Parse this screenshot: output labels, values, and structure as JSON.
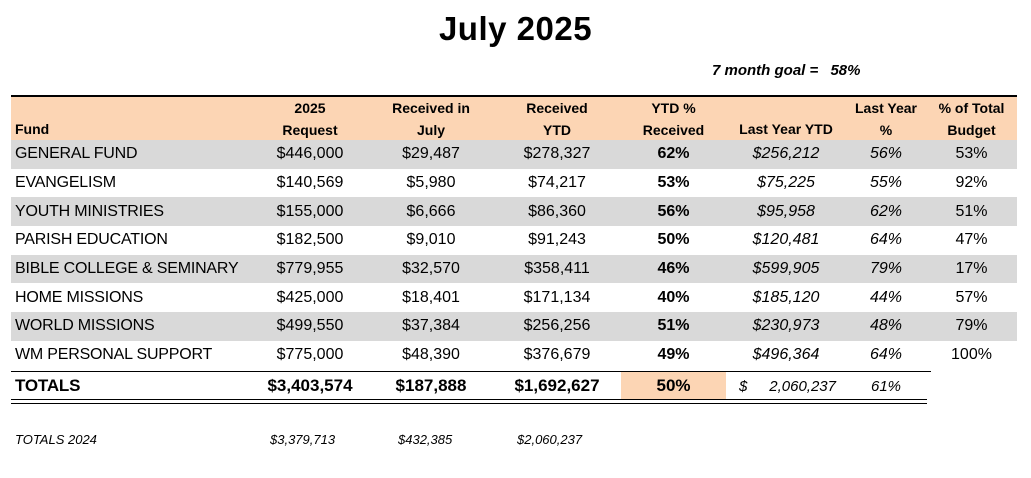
{
  "title": "July 2025",
  "goal": {
    "label": "7 month goal =",
    "value": "58%"
  },
  "headers": {
    "fund": "Fund",
    "request": [
      "2025",
      "Request"
    ],
    "received_month": [
      "Received in",
      "July"
    ],
    "received_ytd": [
      "Received",
      "YTD"
    ],
    "ytd_pct": [
      "YTD %",
      "Received"
    ],
    "last_year_ytd": "Last Year YTD",
    "last_year_pct": [
      "Last Year",
      "%"
    ],
    "pct_total_budget": [
      "% of Total",
      "Budget"
    ]
  },
  "rows": [
    {
      "fund": "GENERAL FUND",
      "request": "$446,000",
      "received_month": "$29,487",
      "received_ytd": "$278,327",
      "ytd_pct": "62%",
      "last_year_ytd": "$256,212",
      "last_year_pct": "56%",
      "pct_total_budget": "53%"
    },
    {
      "fund": "EVANGELISM",
      "request": "$140,569",
      "received_month": "$5,980",
      "received_ytd": "$74,217",
      "ytd_pct": "53%",
      "last_year_ytd": "$75,225",
      "last_year_pct": "55%",
      "pct_total_budget": "92%"
    },
    {
      "fund": "YOUTH MINISTRIES",
      "request": "$155,000",
      "received_month": "$6,666",
      "received_ytd": "$86,360",
      "ytd_pct": "56%",
      "last_year_ytd": "$95,958",
      "last_year_pct": "62%",
      "pct_total_budget": "51%"
    },
    {
      "fund": "PARISH EDUCATION",
      "request": "$182,500",
      "received_month": "$9,010",
      "received_ytd": "$91,243",
      "ytd_pct": "50%",
      "last_year_ytd": "$120,481",
      "last_year_pct": "64%",
      "pct_total_budget": "47%"
    },
    {
      "fund": "BIBLE COLLEGE & SEMINARY",
      "request": "$779,955",
      "received_month": "$32,570",
      "received_ytd": "$358,411",
      "ytd_pct": "46%",
      "last_year_ytd": "$599,905",
      "last_year_pct": "79%",
      "pct_total_budget": "17%"
    },
    {
      "fund": "HOME MISSIONS",
      "request": "$425,000",
      "received_month": "$18,401",
      "received_ytd": "$171,134",
      "ytd_pct": "40%",
      "last_year_ytd": "$185,120",
      "last_year_pct": "44%",
      "pct_total_budget": "57%"
    },
    {
      "fund": "WORLD MISSIONS",
      "request": "$499,550",
      "received_month": "$37,384",
      "received_ytd": "$256,256",
      "ytd_pct": "51%",
      "last_year_ytd": "$230,973",
      "last_year_pct": "48%",
      "pct_total_budget": "79%"
    },
    {
      "fund": "WM PERSONAL SUPPORT",
      "request": "$775,000",
      "received_month": "$48,390",
      "received_ytd": "$376,679",
      "ytd_pct": "49%",
      "last_year_ytd": "$496,364",
      "last_year_pct": "64%",
      "pct_total_budget": "100%"
    }
  ],
  "totals": {
    "label": "TOTALS",
    "request": "$3,403,574",
    "received_month": "$187,888",
    "received_ytd": "$1,692,627",
    "ytd_pct": "50%",
    "last_year_ytd_symbol": "$",
    "last_year_ytd": "2,060,237",
    "last_year_pct": "61%"
  },
  "totals_prev": {
    "label": "TOTALS 2024",
    "request": "$3,379,713",
    "received_month": "$432,385",
    "received_ytd": "$2,060,237"
  },
  "colors": {
    "header_bg": "#fcd5b4",
    "shaded_row": "#d9d9d9"
  }
}
